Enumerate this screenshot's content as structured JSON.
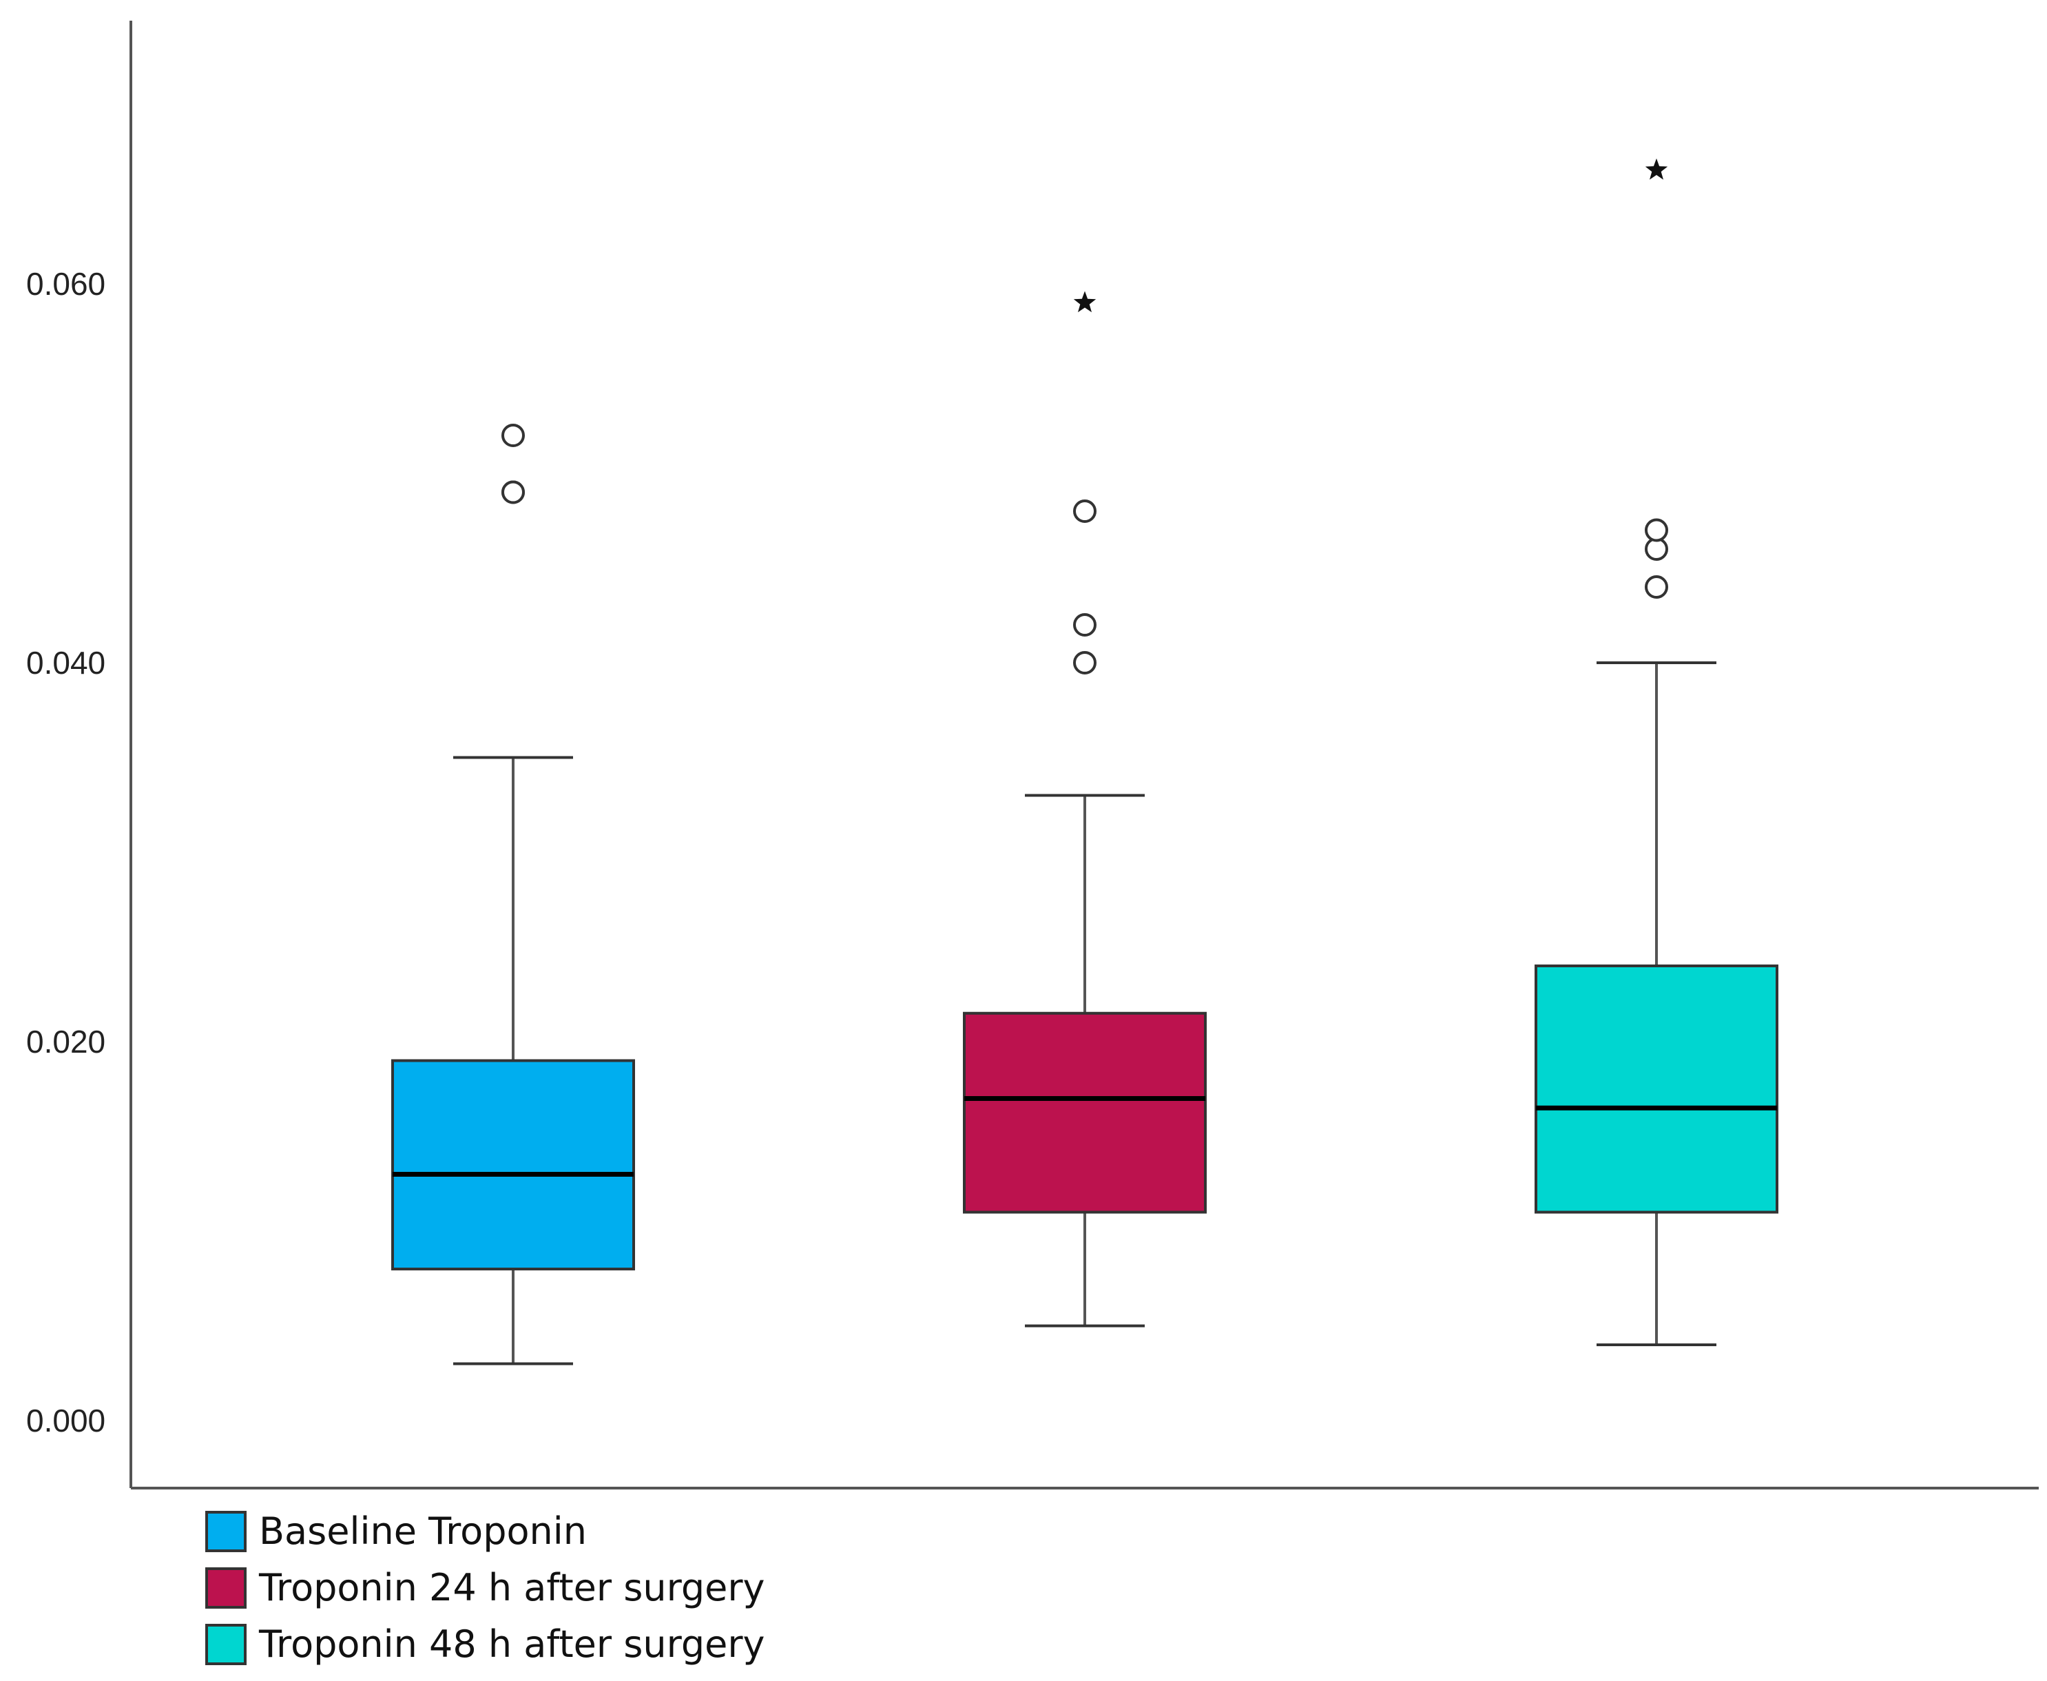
{
  "chart_data": {
    "type": "box",
    "title": "",
    "xlabel": "",
    "ylabel": "",
    "ylim": [
      -0.0035,
      0.074
    ],
    "yticks": [
      0.0,
      0.02,
      0.04,
      0.06
    ],
    "ytick_labels": [
      "0.000",
      "0.020",
      "0.040",
      "0.060"
    ],
    "grid": false,
    "legend_position": "bottom-left",
    "series": [
      {
        "name": "Baseline Troponin",
        "color": "#00AEEF",
        "whisker_low": 0.003,
        "q1": 0.008,
        "median": 0.013,
        "q3": 0.019,
        "whisker_high": 0.035,
        "outliers": [
          0.049,
          0.049,
          0.052
        ],
        "extremes": []
      },
      {
        "name": "Troponin 24 h after surgery",
        "color": "#BC124E",
        "whisker_low": 0.005,
        "q1": 0.011,
        "median": 0.017,
        "q3": 0.0215,
        "whisker_high": 0.033,
        "outliers": [
          0.04,
          0.042,
          0.048
        ],
        "extremes": [
          0.059
        ]
      },
      {
        "name": "Troponin 48 h after surgery",
        "color": "#00D6D0",
        "whisker_low": 0.004,
        "q1": 0.011,
        "median": 0.0165,
        "q3": 0.024,
        "whisker_high": 0.04,
        "outliers": [
          0.044,
          0.046,
          0.047
        ],
        "extremes": [
          0.066
        ]
      }
    ]
  }
}
